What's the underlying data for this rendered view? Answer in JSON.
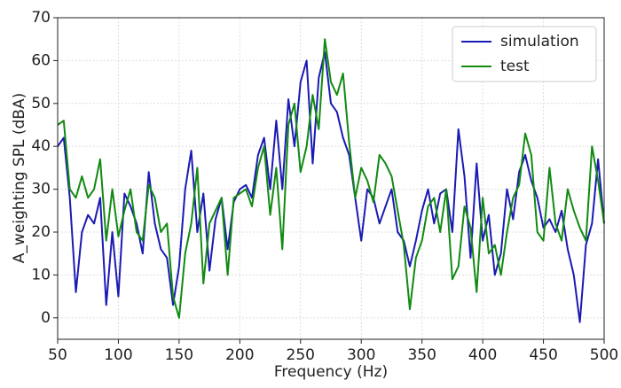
{
  "chart_data": {
    "type": "line",
    "x_label": "Frequency (Hz)",
    "y_label": "A_weighting SPL (dBA)",
    "x": [
      50,
      55,
      60,
      65,
      70,
      75,
      80,
      85,
      90,
      95,
      100,
      105,
      110,
      115,
      120,
      125,
      130,
      135,
      140,
      145,
      150,
      155,
      160,
      165,
      170,
      175,
      180,
      185,
      190,
      195,
      200,
      205,
      210,
      215,
      220,
      225,
      230,
      235,
      240,
      245,
      250,
      255,
      260,
      265,
      270,
      275,
      280,
      285,
      290,
      295,
      300,
      305,
      310,
      315,
      320,
      325,
      330,
      335,
      340,
      345,
      350,
      355,
      360,
      365,
      370,
      375,
      380,
      385,
      390,
      395,
      400,
      405,
      410,
      415,
      420,
      425,
      430,
      435,
      440,
      445,
      450,
      455,
      460,
      465,
      470,
      475,
      480,
      485,
      490,
      495,
      500
    ],
    "series": [
      {
        "name": "simulation",
        "color": "#1a1ab4",
        "values": [
          40,
          42,
          28,
          6,
          20,
          24,
          22,
          28,
          3,
          20,
          5,
          29,
          26,
          22,
          15,
          34,
          22,
          16,
          14,
          3,
          12,
          30,
          39,
          20,
          29,
          11,
          23,
          28,
          16,
          27,
          30,
          31,
          28,
          38,
          42,
          30,
          46,
          30,
          51,
          40,
          55,
          60,
          36,
          56,
          62,
          50,
          48,
          42,
          38,
          28,
          18,
          30,
          28,
          22,
          26,
          30,
          20,
          18,
          12,
          18,
          25,
          30,
          22,
          29,
          30,
          20,
          44,
          33,
          14,
          36,
          18,
          24,
          10,
          15,
          30,
          23,
          34,
          38,
          32,
          28,
          21,
          23,
          20,
          25,
          16,
          10,
          -1,
          17,
          22,
          37,
          22
        ]
      },
      {
        "name": "test",
        "color": "#118a11",
        "values": [
          45,
          46,
          30,
          28,
          33,
          28,
          30,
          37,
          18,
          30,
          19,
          25,
          30,
          20,
          18,
          31,
          28,
          20,
          22,
          5,
          0,
          15,
          22,
          35,
          8,
          22,
          25,
          28,
          10,
          28,
          29,
          30,
          26,
          35,
          40,
          24,
          35,
          16,
          45,
          50,
          34,
          40,
          52,
          44,
          65,
          55,
          52,
          57,
          41,
          28,
          35,
          32,
          27,
          38,
          36,
          33,
          25,
          17,
          2,
          14,
          18,
          26,
          28,
          20,
          30,
          9,
          12,
          26,
          21,
          6,
          28,
          15,
          17,
          10,
          20,
          28,
          31,
          43,
          38,
          20,
          18,
          35,
          22,
          18,
          30,
          25,
          21,
          18,
          40,
          32,
          22
        ]
      }
    ],
    "xlim": [
      50,
      500
    ],
    "xticks": [
      50,
      100,
      150,
      200,
      250,
      300,
      350,
      400,
      450,
      500
    ],
    "ylim": [
      -5,
      70
    ],
    "yticks": [
      0,
      10,
      20,
      30,
      40,
      50,
      60,
      70
    ],
    "grid": true,
    "legend_loc": "upper right"
  }
}
